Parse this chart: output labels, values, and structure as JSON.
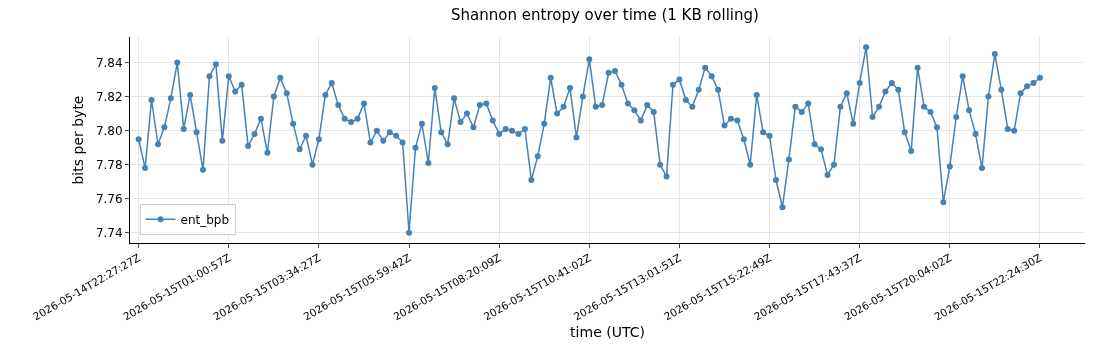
{
  "chart_data": {
    "type": "line",
    "title": "Shannon entropy over time (1 KB rolling)",
    "xlabel": "time (UTC)",
    "ylabel": "bits per byte",
    "categories": [
      "2026-05-14T22:27:27Z",
      null,
      null,
      null,
      null,
      null,
      null,
      null,
      null,
      null,
      null,
      null,
      null,
      null,
      "2026-05-15T01:00:57Z",
      null,
      null,
      null,
      null,
      null,
      null,
      null,
      null,
      null,
      null,
      null,
      null,
      null,
      "2026-05-15T03:34:27Z",
      null,
      null,
      null,
      null,
      null,
      null,
      null,
      null,
      null,
      null,
      null,
      null,
      null,
      "2026-05-15T05:59:42Z",
      null,
      null,
      null,
      null,
      null,
      null,
      null,
      null,
      null,
      null,
      null,
      null,
      null,
      "2026-05-15T08:20:09Z",
      null,
      null,
      null,
      null,
      null,
      null,
      null,
      null,
      null,
      null,
      null,
      null,
      null,
      "2026-05-15T10:41:02Z",
      null,
      null,
      null,
      null,
      null,
      null,
      null,
      null,
      null,
      null,
      null,
      null,
      null,
      "2026-05-15T13:01:51Z",
      null,
      null,
      null,
      null,
      null,
      null,
      null,
      null,
      null,
      null,
      null,
      null,
      null,
      "2026-05-15T15:22:49Z",
      null,
      null,
      null,
      null,
      null,
      null,
      null,
      null,
      null,
      null,
      null,
      null,
      null,
      "2026-05-15T17:43:37Z",
      null,
      null,
      null,
      null,
      null,
      null,
      null,
      null,
      null,
      null,
      null,
      null,
      null,
      "2026-05-15T20:04:02Z",
      null,
      null,
      null,
      null,
      null,
      null,
      null,
      null,
      null,
      null,
      null,
      null,
      null,
      "2026-05-15T22:24:30Z"
    ],
    "series": [
      {
        "name": "ent_bpb",
        "color": "#4682b4",
        "values": [
          7.795,
          7.778,
          7.818,
          7.792,
          7.802,
          7.819,
          7.84,
          7.801,
          7.821,
          7.799,
          7.777,
          7.832,
          7.839,
          7.794,
          7.832,
          7.823,
          7.827,
          7.791,
          7.798,
          7.807,
          7.787,
          7.82,
          7.831,
          7.822,
          7.804,
          7.789,
          7.797,
          7.78,
          7.795,
          7.821,
          7.828,
          7.815,
          7.807,
          7.805,
          7.807,
          7.816,
          7.793,
          7.8,
          7.794,
          7.799,
          7.797,
          7.793,
          7.74,
          7.79,
          7.804,
          7.781,
          7.825,
          7.799,
          7.792,
          7.819,
          7.805,
          7.81,
          7.802,
          7.815,
          7.816,
          7.806,
          7.798,
          7.801,
          7.8,
          7.798,
          7.801,
          7.771,
          7.785,
          7.804,
          7.831,
          7.81,
          7.814,
          7.825,
          7.796,
          7.82,
          7.842,
          7.814,
          7.815,
          7.834,
          7.835,
          7.827,
          7.816,
          7.812,
          7.806,
          7.815,
          7.811,
          7.78,
          7.773,
          7.827,
          7.83,
          7.818,
          7.814,
          7.824,
          7.837,
          7.832,
          7.824,
          7.803,
          7.807,
          7.806,
          7.795,
          7.78,
          7.821,
          7.799,
          7.797,
          7.771,
          7.755,
          7.783,
          7.814,
          7.811,
          7.816,
          7.792,
          7.789,
          7.774,
          7.78,
          7.814,
          7.822,
          7.804,
          7.828,
          7.849,
          7.808,
          7.814,
          7.823,
          7.828,
          7.824,
          7.799,
          7.788,
          7.837,
          7.814,
          7.811,
          7.802,
          7.758,
          7.779,
          7.808,
          7.832,
          7.812,
          7.798,
          7.778,
          7.82,
          7.845,
          7.824,
          7.801,
          7.8,
          7.822,
          7.826,
          7.828,
          7.831
        ]
      }
    ],
    "ylim": [
      7.734,
      7.855
    ],
    "yticks": [
      7.74,
      7.76,
      7.78,
      {
        "value": 7.8,
        "label": "7.80"
      },
      7.82,
      7.84
    ],
    "grid": true,
    "legend": "bottom left",
    "marker": "circle",
    "line_style": "solid"
  }
}
